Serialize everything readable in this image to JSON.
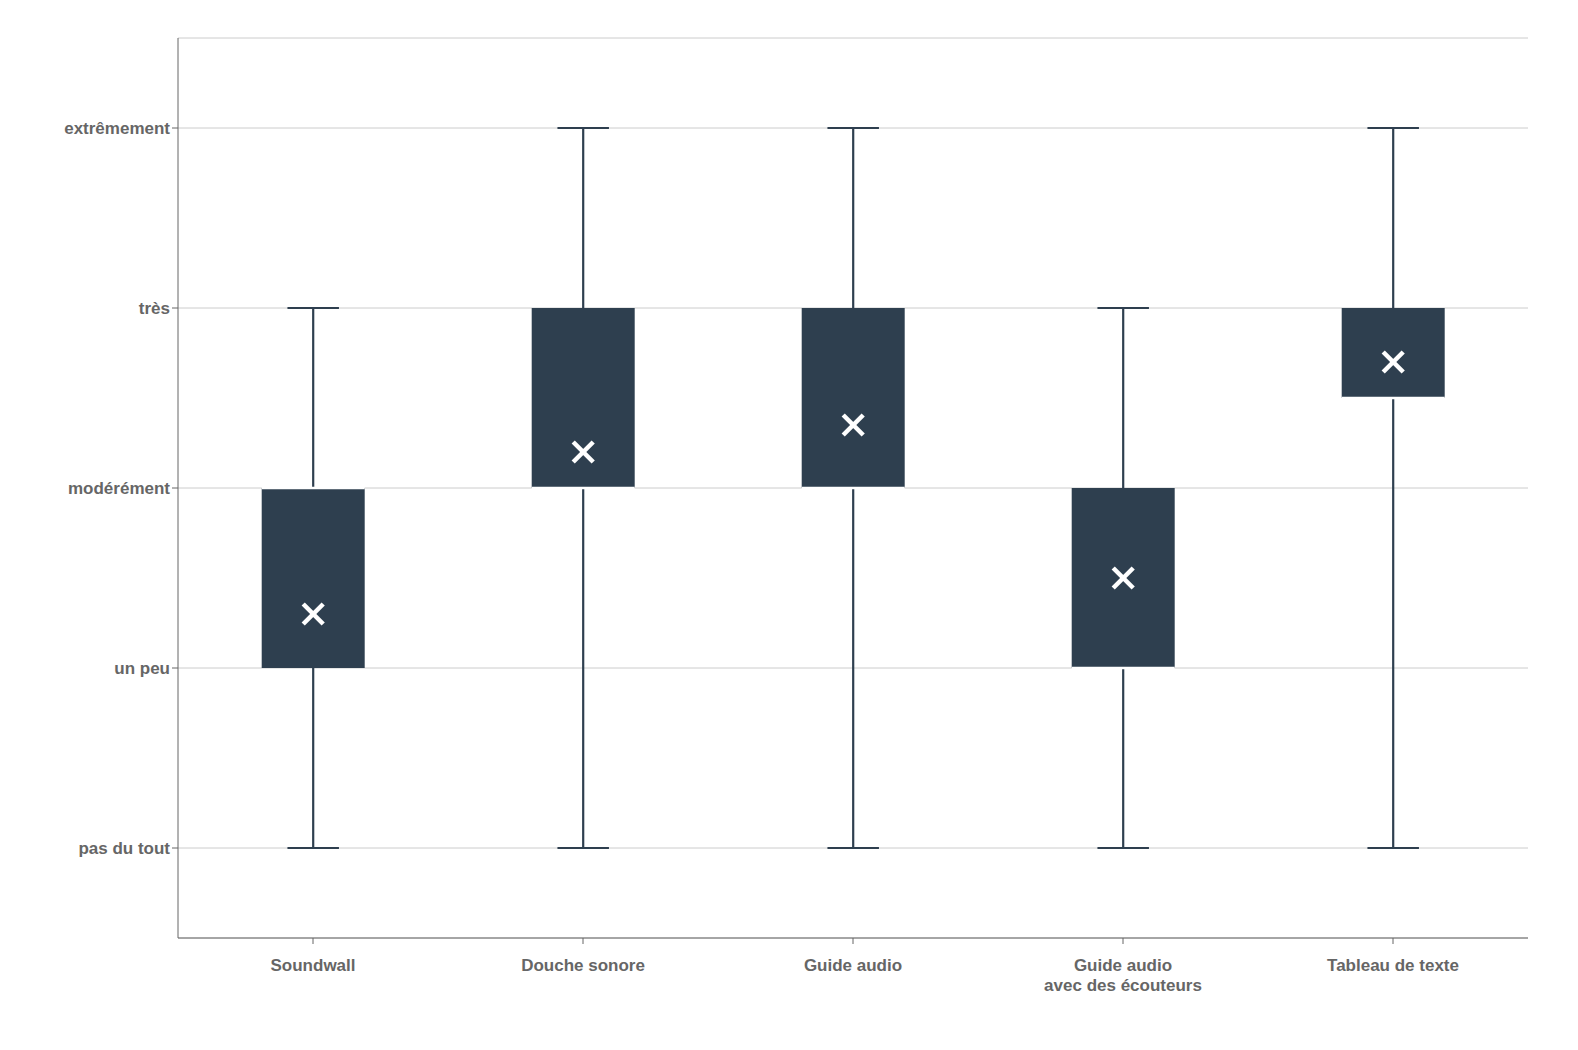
{
  "chart_data": {
    "type": "box",
    "categories": [
      "Soundwall",
      "Douche sonore",
      "Guide audio",
      "Guide audio\navec des écouteurs",
      "Tableau de texte"
    ],
    "whisker_lo": [
      1,
      1,
      1,
      1,
      1
    ],
    "q1": [
      2,
      3,
      3,
      2,
      3.5
    ],
    "median": [
      3,
      3,
      3,
      2,
      3.5
    ],
    "q3": [
      3,
      4,
      4,
      3,
      4
    ],
    "whisker_hi": [
      4,
      5,
      5,
      4,
      5
    ],
    "mean": [
      2.3,
      3.2,
      3.35,
      2.5,
      3.7
    ],
    "color": "#2e3f4f",
    "ylim": [
      0.5,
      5.5
    ],
    "yticks": [
      {
        "value": 5,
        "label": "extrêmement"
      },
      {
        "value": 4,
        "label": "très"
      },
      {
        "value": 3,
        "label": "modérément"
      },
      {
        "value": 2,
        "label": "un peu"
      },
      {
        "value": 1,
        "label": "pas du tout"
      }
    ],
    "grid": true
  }
}
